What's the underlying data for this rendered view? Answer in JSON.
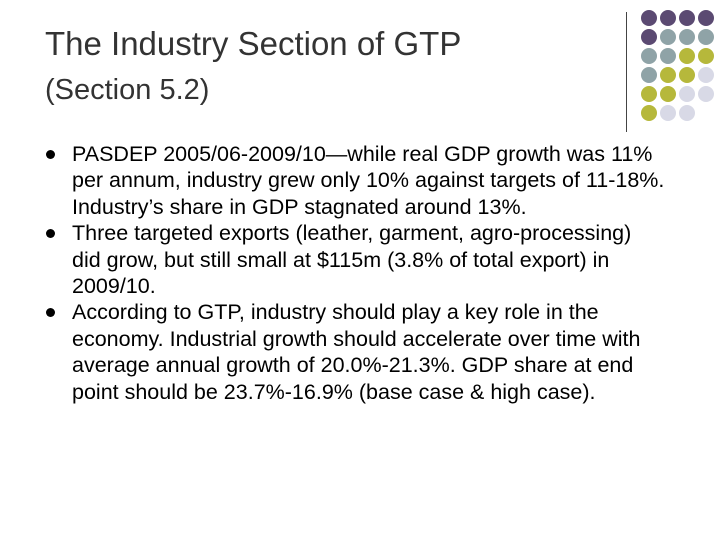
{
  "slide": {
    "title_line1": "The Industry Section of GTP",
    "title_line2": "(Section 5.2)",
    "bullets": [
      "PASDEP 2005/06-2009/10—while real GDP growth was 11% per annum, industry grew only 10% against targets of 11-18%. Industry’s share in GDP stagnated around 13%.",
      "Three targeted exports (leather, garment, agro-processing) did grow, but still small at $115m (3.8% of total export) in 2009/10.",
      "According to GTP, industry should play a key role in the economy. Industrial growth should accelerate over time with average annual growth of 20.0%-21.3%. GDP share at end point should be 23.7%-16.9% (base case & high case)."
    ]
  },
  "colors": {
    "purple": "#5b4a72",
    "teal": "#8fa3a7",
    "olive": "#b6b83b",
    "lavender": "#d8d9e6"
  },
  "decor": {
    "dot_rows": [
      [
        "purple",
        "purple",
        "purple",
        "purple"
      ],
      [
        "purple",
        "teal",
        "teal",
        "teal"
      ],
      [
        "teal",
        "teal",
        "olive",
        "olive"
      ],
      [
        "teal",
        "olive",
        "olive",
        "lavender"
      ],
      [
        "olive",
        "olive",
        "lavender",
        "lavender"
      ],
      [
        "olive",
        "lavender",
        "lavender",
        ""
      ]
    ]
  }
}
